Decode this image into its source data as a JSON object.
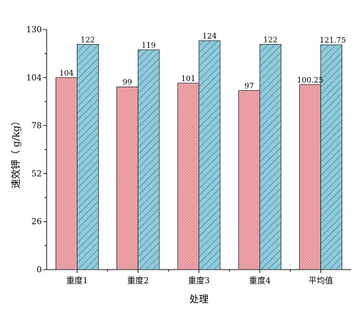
{
  "chart_data": {
    "type": "bar",
    "categories": [
      "重度1",
      "重度2",
      "重度3",
      "重度4",
      "平均值"
    ],
    "series": [
      {
        "values": [
          104,
          99,
          101,
          97,
          100.25
        ],
        "labels": [
          "104",
          "99",
          "101",
          "97",
          "100.25"
        ],
        "color": "#f7a8ad",
        "pattern": "dots"
      },
      {
        "values": [
          122,
          119,
          124,
          122,
          121.75
        ],
        "labels": [
          "122",
          "119",
          "124",
          "122",
          "121.75"
        ],
        "color": "#8ecbdc",
        "pattern": "diagonal-hatch"
      }
    ],
    "xlabel": "处理",
    "ylabel": "速效钾（ g/kg）",
    "ylim": [
      0,
      130
    ],
    "yticks": [
      0,
      26,
      52,
      78,
      104,
      130
    ],
    "grid": false,
    "legend": "none"
  }
}
